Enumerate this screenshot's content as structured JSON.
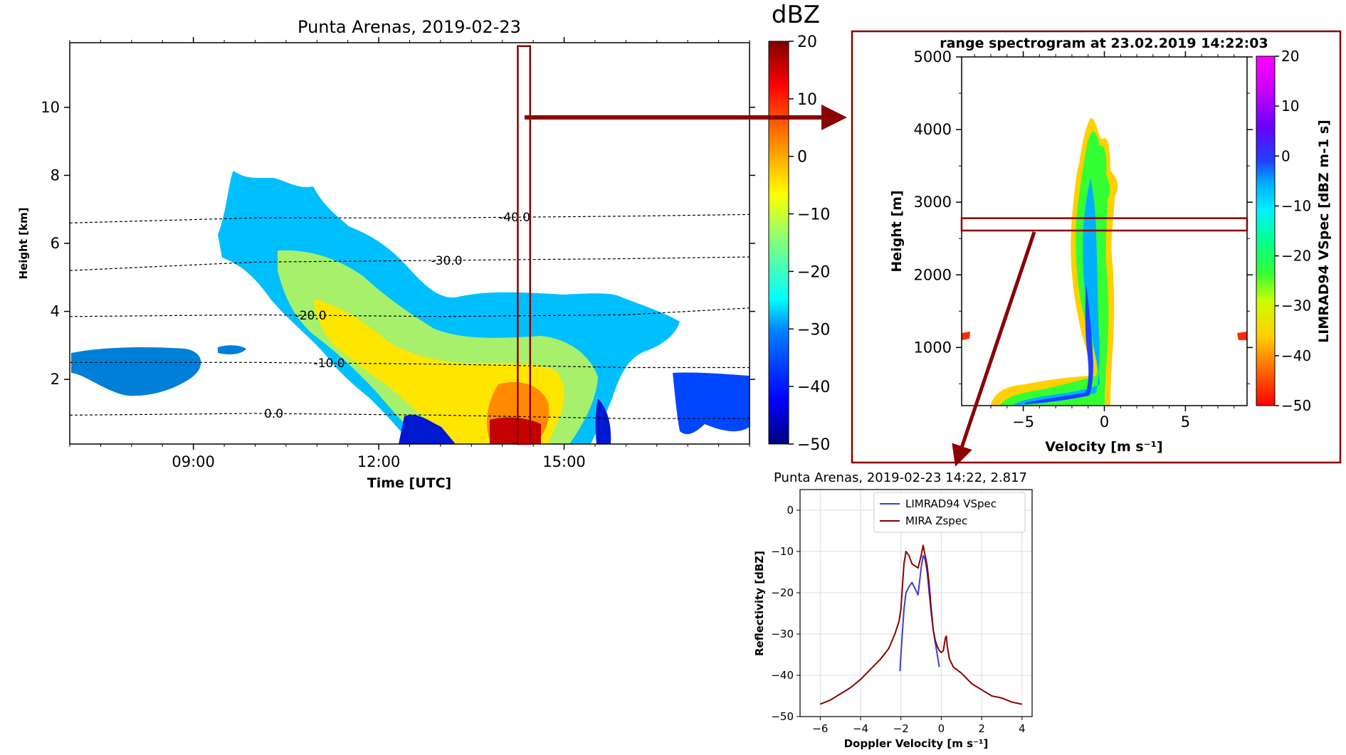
{
  "chart_data": [
    {
      "id": "timeheight",
      "type": "heatmap",
      "title": "Punta Arenas, 2019-02-23",
      "xlabel": "Time [UTC]",
      "ylabel": "Height [km]",
      "x_unit": "hours UTC",
      "xlim": [
        7.0,
        18.0
      ],
      "ylim": [
        0.1,
        11.9
      ],
      "xticks": [
        {
          "value": 9,
          "label": "09:00"
        },
        {
          "value": 12,
          "label": "12:00"
        },
        {
          "value": 15,
          "label": "15:00"
        }
      ],
      "yticks": [
        2,
        4,
        6,
        8,
        10
      ],
      "colorbar": {
        "label": "dBZ",
        "min": -50,
        "max": 20,
        "ticks": [
          -50,
          -40,
          -30,
          -20,
          -10,
          0,
          10,
          20
        ]
      },
      "isotherms": [
        {
          "label": "-40.0",
          "x": [
            7.0,
            10.0,
            13.0,
            16.0,
            18.0
          ],
          "y": [
            6.6,
            6.75,
            6.75,
            6.8,
            6.85
          ],
          "label_x": 14.2
        },
        {
          "label": "-30.0",
          "x": [
            7.0,
            10.0,
            13.0,
            16.0,
            18.0
          ],
          "y": [
            5.2,
            5.45,
            5.5,
            5.55,
            5.6
          ],
          "label_x": 13.1
        },
        {
          "label": "-20.0",
          "x": [
            7.0,
            10.0,
            13.0,
            16.0,
            18.0
          ],
          "y": [
            3.85,
            3.9,
            3.85,
            3.9,
            4.1
          ],
          "label_x": 10.9
        },
        {
          "label": "-10.0",
          "x": [
            7.0,
            10.0,
            13.0,
            16.0,
            18.0
          ],
          "y": [
            2.5,
            2.5,
            2.45,
            2.35,
            2.35
          ],
          "label_x": 11.2
        },
        {
          "label": "0.0",
          "x": [
            7.0,
            10.0,
            13.0,
            16.0,
            18.0
          ],
          "y": [
            0.95,
            1.0,
            0.95,
            0.85,
            0.85
          ],
          "label_x": 10.3
        }
      ],
      "highlight_box": {
        "x_range": [
          14.25,
          14.45
        ],
        "y_range": [
          0.1,
          11.8
        ]
      }
    },
    {
      "id": "spectrogram",
      "type": "heatmap",
      "title": "range spectrogram at 23.02.2019 14:22:03",
      "xlabel": "Velocity [m s⁻¹]",
      "ylabel": "Height [m]",
      "xlim": [
        -8.8,
        8.8
      ],
      "ylim": [
        200,
        5000
      ],
      "xticks": [
        -5,
        0,
        5
      ],
      "yticks": [
        1000,
        2000,
        3000,
        4000,
        5000
      ],
      "colorbar": {
        "label": "LIMRAD94 VSpec [dBZ m-1 s]",
        "min": -50,
        "max": 20,
        "ticks": [
          -50,
          -40,
          -30,
          -20,
          -10,
          0,
          10,
          20
        ]
      },
      "highlight_box": {
        "x_range": [
          -8.8,
          8.8
        ],
        "y_range": [
          2610,
          2780
        ]
      }
    },
    {
      "id": "spectrum",
      "type": "line",
      "title": "Punta Arenas, 2019-02-23 14:22, 2.817",
      "xlabel": "Doppler Velocity [m s⁻¹]",
      "ylabel": "Reflectivity [dBZ]",
      "xlim": [
        -7.0,
        4.5
      ],
      "ylim": [
        -50,
        5
      ],
      "xticks": [
        -6,
        -4,
        -2,
        0,
        2,
        4
      ],
      "yticks": [
        -50,
        -40,
        -30,
        -20,
        -10,
        0
      ],
      "grid": true,
      "legend": "top-right",
      "series": [
        {
          "name": "LIMRAD94 VSpec",
          "color": "#3a3fd4",
          "x": [
            -2.05,
            -1.95,
            -1.85,
            -1.75,
            -1.6,
            -1.45,
            -1.3,
            -1.15,
            -1.0,
            -0.9,
            -0.8,
            -0.7,
            -0.6,
            -0.5,
            -0.4,
            -0.3,
            -0.2,
            -0.1
          ],
          "y": [
            -39,
            -31,
            -24,
            -20,
            -18.5,
            -17.5,
            -19,
            -20.5,
            -14,
            -11,
            -12,
            -15,
            -20,
            -25,
            -29,
            -32,
            -35,
            -38
          ]
        },
        {
          "name": "MIRA Zspec",
          "color": "#8b0000",
          "x": [
            -6.0,
            -5.5,
            -5.0,
            -4.5,
            -4.0,
            -3.5,
            -3.0,
            -2.6,
            -2.3,
            -2.1,
            -2.0,
            -1.95,
            -1.85,
            -1.75,
            -1.6,
            -1.45,
            -1.3,
            -1.15,
            -1.0,
            -0.9,
            -0.8,
            -0.7,
            -0.6,
            -0.5,
            -0.4,
            -0.3,
            -0.2,
            -0.1,
            0.0,
            0.1,
            0.2,
            0.25,
            0.3,
            0.4,
            0.6,
            1.0,
            1.5,
            2.0,
            2.5,
            3.0,
            3.5,
            4.0
          ],
          "y": [
            -47,
            -46,
            -44.5,
            -43,
            -41,
            -38.5,
            -36,
            -33.5,
            -30,
            -27,
            -24,
            -20,
            -13,
            -10,
            -11,
            -13,
            -13.5,
            -14,
            -11,
            -8.5,
            -11,
            -13.5,
            -18,
            -24,
            -29,
            -31.5,
            -33,
            -34,
            -34.5,
            -34,
            -31,
            -30.5,
            -33,
            -36,
            -38,
            -39.5,
            -42,
            -43.5,
            -45,
            -45.5,
            -46.5,
            -47
          ]
        }
      ]
    }
  ]
}
